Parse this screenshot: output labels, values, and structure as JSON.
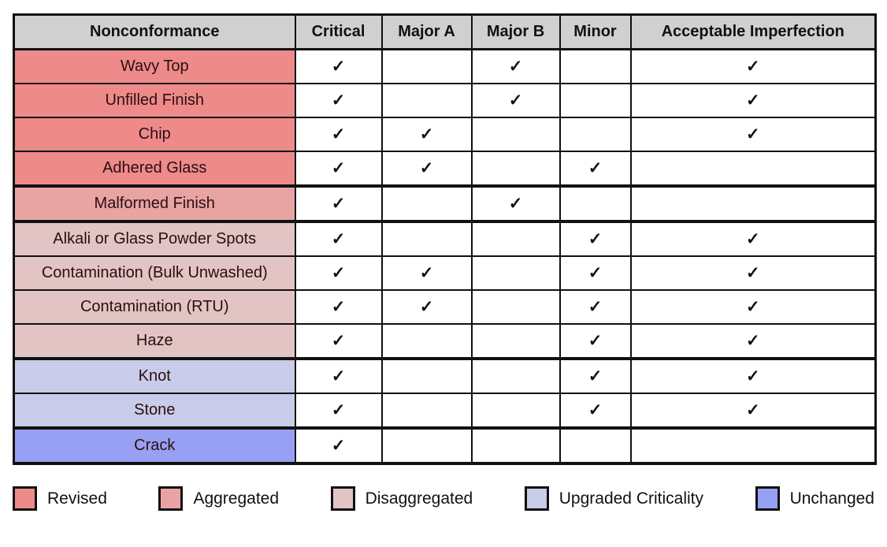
{
  "figure": {
    "check_glyph": "✓"
  },
  "table": {
    "columns": [
      "Nonconformance",
      "Critical",
      "Major A",
      "Major B",
      "Minor",
      "Acceptable Imperfection"
    ],
    "rows": [
      {
        "label": "Wavy Top",
        "group": "revised",
        "checks": [
          "Critical",
          "Major B",
          "Acceptable Imperfection"
        ]
      },
      {
        "label": "Unfilled Finish",
        "group": "revised",
        "checks": [
          "Critical",
          "Major B",
          "Acceptable Imperfection"
        ]
      },
      {
        "label": "Chip",
        "group": "revised",
        "checks": [
          "Critical",
          "Major A",
          "Acceptable Imperfection"
        ]
      },
      {
        "label": "Adhered Glass",
        "group": "revised",
        "checks": [
          "Critical",
          "Major A",
          "Minor"
        ]
      },
      {
        "label": "Malformed Finish",
        "group": "aggregated",
        "checks": [
          "Critical",
          "Major B"
        ]
      },
      {
        "label": "Alkali or Glass Powder Spots",
        "group": "disaggregated",
        "checks": [
          "Critical",
          "Minor",
          "Acceptable Imperfection"
        ]
      },
      {
        "label": "Contamination (Bulk Unwashed)",
        "group": "disaggregated",
        "checks": [
          "Critical",
          "Major A",
          "Minor",
          "Acceptable Imperfection"
        ]
      },
      {
        "label": "Contamination (RTU)",
        "group": "disaggregated",
        "checks": [
          "Critical",
          "Major A",
          "Minor",
          "Acceptable Imperfection"
        ]
      },
      {
        "label": "Haze",
        "group": "disaggregated",
        "checks": [
          "Critical",
          "Minor",
          "Acceptable Imperfection"
        ]
      },
      {
        "label": "Knot",
        "group": "upgraded_criticality",
        "checks": [
          "Critical",
          "Minor",
          "Acceptable Imperfection"
        ]
      },
      {
        "label": "Stone",
        "group": "upgraded_criticality",
        "checks": [
          "Critical",
          "Minor",
          "Acceptable Imperfection"
        ]
      },
      {
        "label": "Crack",
        "group": "unchanged",
        "checks": [
          "Critical"
        ]
      }
    ]
  },
  "groups": {
    "revised": {
      "label": "Revised",
      "color": "#ee8a8a"
    },
    "aggregated": {
      "label": "Aggregated",
      "color": "#e8a3a3"
    },
    "disaggregated": {
      "label": "Disaggregated",
      "color": "#e3c4c4"
    },
    "upgraded_criticality": {
      "label": "Upgraded Criticality",
      "color": "#c9cce8"
    },
    "unchanged": {
      "label": "Unchanged",
      "color": "#97a0f2"
    }
  },
  "legend": {
    "order": [
      "revised",
      "aggregated",
      "disaggregated",
      "upgraded_criticality",
      "unchanged"
    ]
  },
  "colors": {
    "header_bg": "#d0d0d0",
    "border": "#111111",
    "check": "#111111",
    "page_bg": "#ffffff"
  },
  "chart_data": {
    "type": "table",
    "title": "",
    "row_header": "Nonconformance",
    "columns": [
      "Critical",
      "Major A",
      "Major B",
      "Minor",
      "Acceptable Imperfection"
    ],
    "rows": [
      "Wavy Top",
      "Unfilled Finish",
      "Chip",
      "Adhered Glass",
      "Malformed Finish",
      "Alkali or Glass Powder Spots",
      "Contamination (Bulk Unwashed)",
      "Contamination (RTU)",
      "Haze",
      "Knot",
      "Stone",
      "Crack"
    ],
    "matrix": [
      [
        1,
        0,
        1,
        0,
        1
      ],
      [
        1,
        0,
        1,
        0,
        1
      ],
      [
        1,
        1,
        0,
        0,
        1
      ],
      [
        1,
        1,
        0,
        1,
        0
      ],
      [
        1,
        0,
        1,
        0,
        0
      ],
      [
        1,
        0,
        0,
        1,
        1
      ],
      [
        1,
        1,
        0,
        1,
        1
      ],
      [
        1,
        1,
        0,
        1,
        1
      ],
      [
        1,
        0,
        0,
        1,
        1
      ],
      [
        1,
        0,
        0,
        1,
        1
      ],
      [
        1,
        0,
        0,
        1,
        1
      ],
      [
        1,
        0,
        0,
        0,
        0
      ]
    ],
    "row_groups": [
      "revised",
      "revised",
      "revised",
      "revised",
      "aggregated",
      "disaggregated",
      "disaggregated",
      "disaggregated",
      "disaggregated",
      "upgraded_criticality",
      "upgraded_criticality",
      "unchanged"
    ],
    "legend_entries": [
      "Revised",
      "Aggregated",
      "Disaggregated",
      "Upgraded Criticality",
      "Unchanged"
    ],
    "legend_position": "bottom",
    "cell_mark": "✓"
  }
}
